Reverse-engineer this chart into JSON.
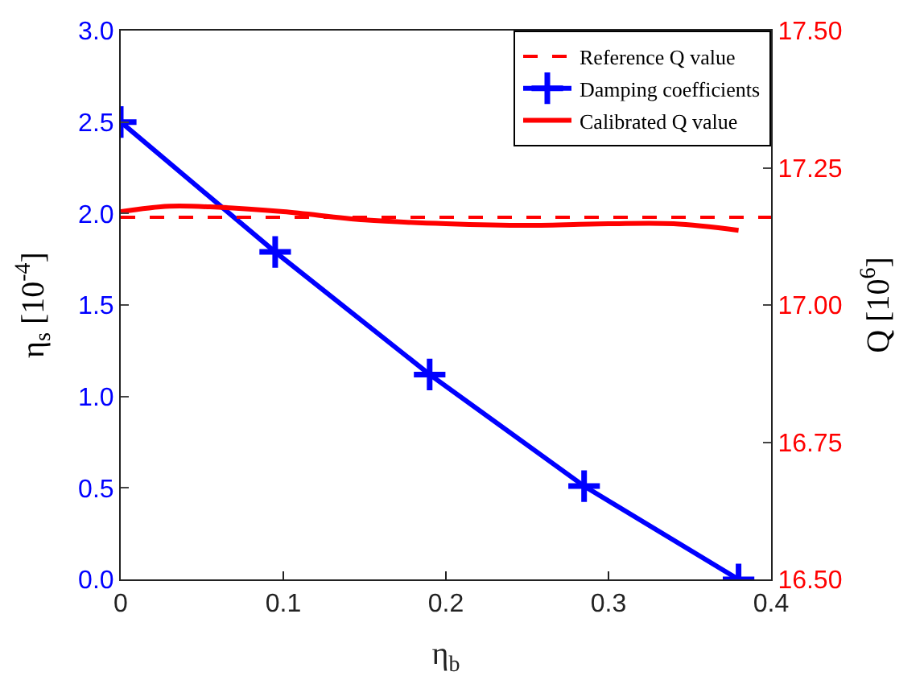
{
  "chart_data": {
    "type": "line",
    "xlabel": "η$_{b}$",
    "ylabel": "η$_{s}$ [10$^{-4}$]",
    "y2label": "Q [10$^{6}$]",
    "xlim": [
      0,
      0.4
    ],
    "xticks": [
      0,
      0.1,
      0.2,
      0.3,
      0.4
    ],
    "ylim": [
      0,
      3.0
    ],
    "yticks": [
      {
        "value": 0,
        "label": "0.0"
      },
      {
        "value": 0.5,
        "label": "0.5"
      },
      {
        "value": 1,
        "label": "1.0"
      },
      {
        "value": 1.5,
        "label": "1.5"
      },
      {
        "value": 2,
        "label": "2.0"
      },
      {
        "value": 2.5,
        "label": "2.5"
      },
      {
        "value": 3,
        "label": "3.0"
      }
    ],
    "y2lim": [
      16.5,
      17.5
    ],
    "y2ticks": [
      {
        "value": 16.5,
        "label": "16.50"
      },
      {
        "value": 16.75,
        "label": "16.75"
      },
      {
        "value": 17,
        "label": "17.00"
      },
      {
        "value": 17.25,
        "label": "17.25"
      },
      {
        "value": 17.5,
        "label": "17.50"
      }
    ],
    "ref_lines": [
      {
        "axis": "y2",
        "value": 17.16,
        "label": "Reference Q value",
        "color": "#ff0000",
        "line_style": "dashed"
      }
    ],
    "series": [
      {
        "name": "Damping coefficients",
        "color": "#0000ff",
        "marker": "cross",
        "x": [
          0,
          0.095,
          0.19,
          0.285,
          0.38
        ],
        "values": [
          2.5,
          1.79,
          1.12,
          0.51,
          0
        ]
      },
      {
        "name": "Calibrated Q value",
        "color": "#ff0000",
        "marker": "none",
        "axis": "y2",
        "x": [
          0,
          0.03,
          0.06,
          0.1,
          0.15,
          0.2,
          0.25,
          0.3,
          0.34,
          0.38
        ],
        "values": [
          17.17,
          17.18,
          17.178,
          17.17,
          17.155,
          17.148,
          17.145,
          17.148,
          17.148,
          17.136
        ]
      }
    ],
    "legend": "top right"
  }
}
